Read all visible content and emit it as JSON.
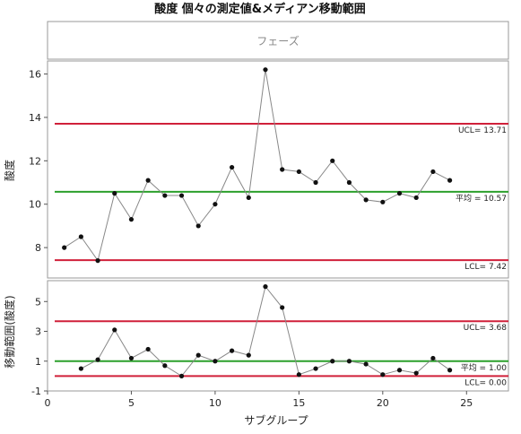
{
  "chart_data": {
    "type": "line",
    "title": "酸度  個々の測定値&メディアン移動範囲",
    "phase_header": "フェーズ",
    "xlabel": "サブグループ",
    "xlim": [
      0,
      27.5
    ],
    "x_ticks": [
      0,
      5,
      10,
      15,
      20,
      25
    ],
    "grid": false,
    "panels": [
      {
        "name": "individuals",
        "ylabel": "酸度",
        "ylim": [
          6.6,
          16.6
        ],
        "y_ticks": [
          8,
          10,
          12,
          14,
          16
        ],
        "series": [
          {
            "x": [
              1,
              2,
              3,
              4,
              5,
              6,
              7,
              8,
              9,
              10,
              11,
              12,
              13,
              14,
              15,
              16,
              17,
              18,
              19,
              20,
              21,
              22,
              23,
              24
            ],
            "values": [
              8.0,
              8.5,
              7.4,
              10.5,
              9.3,
              11.1,
              10.4,
              10.4,
              9.0,
              10.0,
              11.7,
              10.3,
              16.2,
              11.6,
              11.5,
              11.0,
              12.0,
              11.0,
              10.2,
              10.1,
              10.5,
              10.3,
              11.5,
              11.1
            ]
          }
        ],
        "limits": [
          {
            "label": "UCL= 13.71",
            "value": 13.71,
            "color": "#d0203a"
          },
          {
            "label": "平均 = 10.57",
            "value": 10.57,
            "color": "#2ca02c"
          },
          {
            "label": "LCL= 7.42",
            "value": 7.42,
            "color": "#d0203a"
          }
        ]
      },
      {
        "name": "moving-range",
        "ylabel": "移動範囲(酸度)",
        "ylim": [
          -1,
          6.4
        ],
        "y_ticks": [
          -1,
          1,
          3,
          5
        ],
        "series": [
          {
            "x": [
              2,
              3,
              4,
              5,
              6,
              7,
              8,
              9,
              10,
              11,
              12,
              13,
              14,
              15,
              16,
              17,
              18,
              19,
              20,
              21,
              22,
              23,
              24
            ],
            "values": [
              0.5,
              1.1,
              3.1,
              1.2,
              1.8,
              0.7,
              0.0,
              1.4,
              1.0,
              1.7,
              1.4,
              6.0,
              4.6,
              0.1,
              0.5,
              1.0,
              1.0,
              0.8,
              0.1,
              0.4,
              0.2,
              1.2,
              0.4
            ]
          }
        ],
        "limits": [
          {
            "label": "UCL= 3.68",
            "value": 3.68,
            "color": "#d0203a"
          },
          {
            "label": "平均 = 1.00",
            "value": 1.0,
            "color": "#2ca02c"
          },
          {
            "label": "LCL= 0.00",
            "value": 0.0,
            "color": "#d0203a"
          }
        ]
      }
    ],
    "colors": {
      "line": "#888888",
      "marker": "#111111"
    }
  }
}
